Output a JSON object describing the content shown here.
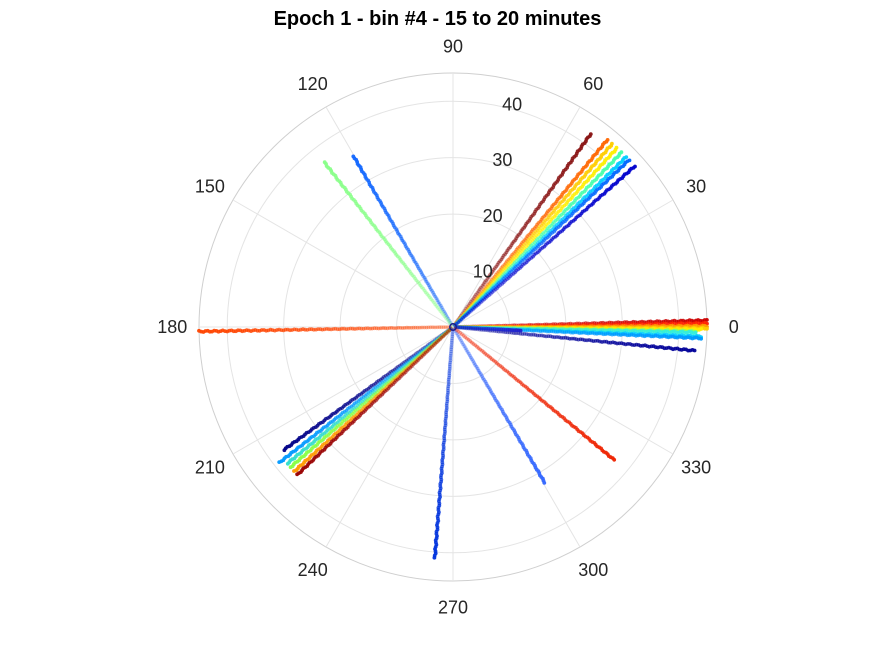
{
  "chart_data": {
    "type": "scatter",
    "projection": "polar",
    "title": "Epoch 1 - bin #4 - 15 to 20 minutes",
    "theta_unit": "degrees",
    "theta_ticks": [
      0,
      30,
      60,
      90,
      120,
      150,
      180,
      210,
      240,
      270,
      300,
      330
    ],
    "theta_tick_labels": [
      "0",
      "30",
      "60",
      "90",
      "120",
      "150",
      "180",
      "210",
      "240",
      "270",
      "300",
      "330"
    ],
    "r_ticks": [
      10,
      20,
      30,
      40
    ],
    "r_tick_labels": [
      "10",
      "20",
      "30",
      "40"
    ],
    "rlim": [
      0,
      45
    ],
    "r_label_angle_deg": 80,
    "grid": true,
    "colormap": "jet",
    "series": [
      {
        "theta": 1.5,
        "r_start": 0.5,
        "r_end": 45,
        "color": "#cc0000"
      },
      {
        "theta": 0.8,
        "r_start": 0.5,
        "r_end": 45,
        "color": "#ff2200"
      },
      {
        "theta": 0.2,
        "r_start": 0.5,
        "r_end": 45,
        "color": "#ff9900"
      },
      {
        "theta": -0.3,
        "r_start": 0.5,
        "r_end": 45,
        "color": "#ffcc00"
      },
      {
        "theta": -0.6,
        "r_start": 0.5,
        "r_end": 44,
        "color": "#ffee00"
      },
      {
        "theta": -1.0,
        "r_start": 0.5,
        "r_end": 43,
        "color": "#88ff66"
      },
      {
        "theta": -1.3,
        "r_start": 0.5,
        "r_end": 43,
        "color": "#33eedd"
      },
      {
        "theta": -2.2,
        "r_start": 0.5,
        "r_end": 44,
        "color": "#00ccff"
      },
      {
        "theta": -2.6,
        "r_start": 0.5,
        "r_end": 44,
        "color": "#0099ff"
      },
      {
        "theta": -5.6,
        "r_start": 0.5,
        "r_end": 43,
        "color": "#000099"
      },
      {
        "theta": -3.0,
        "r_start": 0.5,
        "r_end": 12,
        "color": "#2222cc"
      },
      {
        "theta": 54.5,
        "r_start": 0.5,
        "r_end": 42,
        "color": "#881111"
      },
      {
        "theta": 50.5,
        "r_start": 0.5,
        "r_end": 43,
        "color": "#ff6600"
      },
      {
        "theta": 49.0,
        "r_start": 0.5,
        "r_end": 43,
        "color": "#ffcc00"
      },
      {
        "theta": 47.5,
        "r_start": 0.5,
        "r_end": 43,
        "color": "#ffee00"
      },
      {
        "theta": 46.0,
        "r_start": 0.5,
        "r_end": 43,
        "color": "#44ffaa"
      },
      {
        "theta": 44.5,
        "r_start": 0.5,
        "r_end": 43,
        "color": "#00ccff"
      },
      {
        "theta": 43.5,
        "r_start": 0.5,
        "r_end": 43,
        "color": "#0066ff"
      },
      {
        "theta": 41.5,
        "r_start": 0.5,
        "r_end": 43,
        "color": "#0000cc"
      },
      {
        "theta": 120.2,
        "r_start": 0.5,
        "r_end": 35,
        "color": "#1166ff"
      },
      {
        "theta": 128.0,
        "r_start": 0.5,
        "r_end": 37,
        "color": "#88ff88"
      },
      {
        "theta": 181.0,
        "r_start": 0.5,
        "r_end": 45,
        "color": "#ff4400"
      },
      {
        "theta": 216.0,
        "r_start": 0.5,
        "r_end": 37,
        "color": "#000088"
      },
      {
        "theta": 218.0,
        "r_start": 0.5,
        "r_end": 39,
        "color": "#0099ff"
      },
      {
        "theta": 219.5,
        "r_start": 0.5,
        "r_end": 38,
        "color": "#33ddcc"
      },
      {
        "theta": 220.8,
        "r_start": 0.5,
        "r_end": 38,
        "color": "#88ff44"
      },
      {
        "theta": 222.3,
        "r_start": 0.5,
        "r_end": 38,
        "color": "#ff9900"
      },
      {
        "theta": 223.5,
        "r_start": 0.5,
        "r_end": 38,
        "color": "#990000"
      },
      {
        "theta": 265.5,
        "r_start": 0.5,
        "r_end": 41,
        "color": "#0033dd"
      },
      {
        "theta": 300.5,
        "r_start": 0.5,
        "r_end": 32,
        "color": "#3366ff"
      },
      {
        "theta": 320.5,
        "r_start": 0.5,
        "r_end": 37,
        "color": "#ee2200"
      }
    ]
  }
}
